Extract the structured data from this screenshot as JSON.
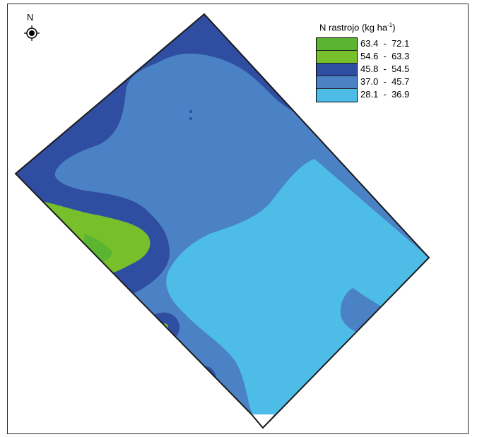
{
  "north_label": "N",
  "legend": {
    "title": "N rastrojo (kg ha",
    "title_sup": "-1",
    "title_end": ")",
    "classes": [
      {
        "range": "63.4  -  72.1",
        "color": "#5cb531"
      },
      {
        "range": "54.6  -  63.3",
        "color": "#78bf2c"
      },
      {
        "range": "45.8  -  54.5",
        "color": "#2f4ea1"
      },
      {
        "range": "37.0  -  45.7",
        "color": "#4a82c5"
      },
      {
        "range": "28.1  -  36.9",
        "color": "#4dbde8"
      }
    ]
  }
}
